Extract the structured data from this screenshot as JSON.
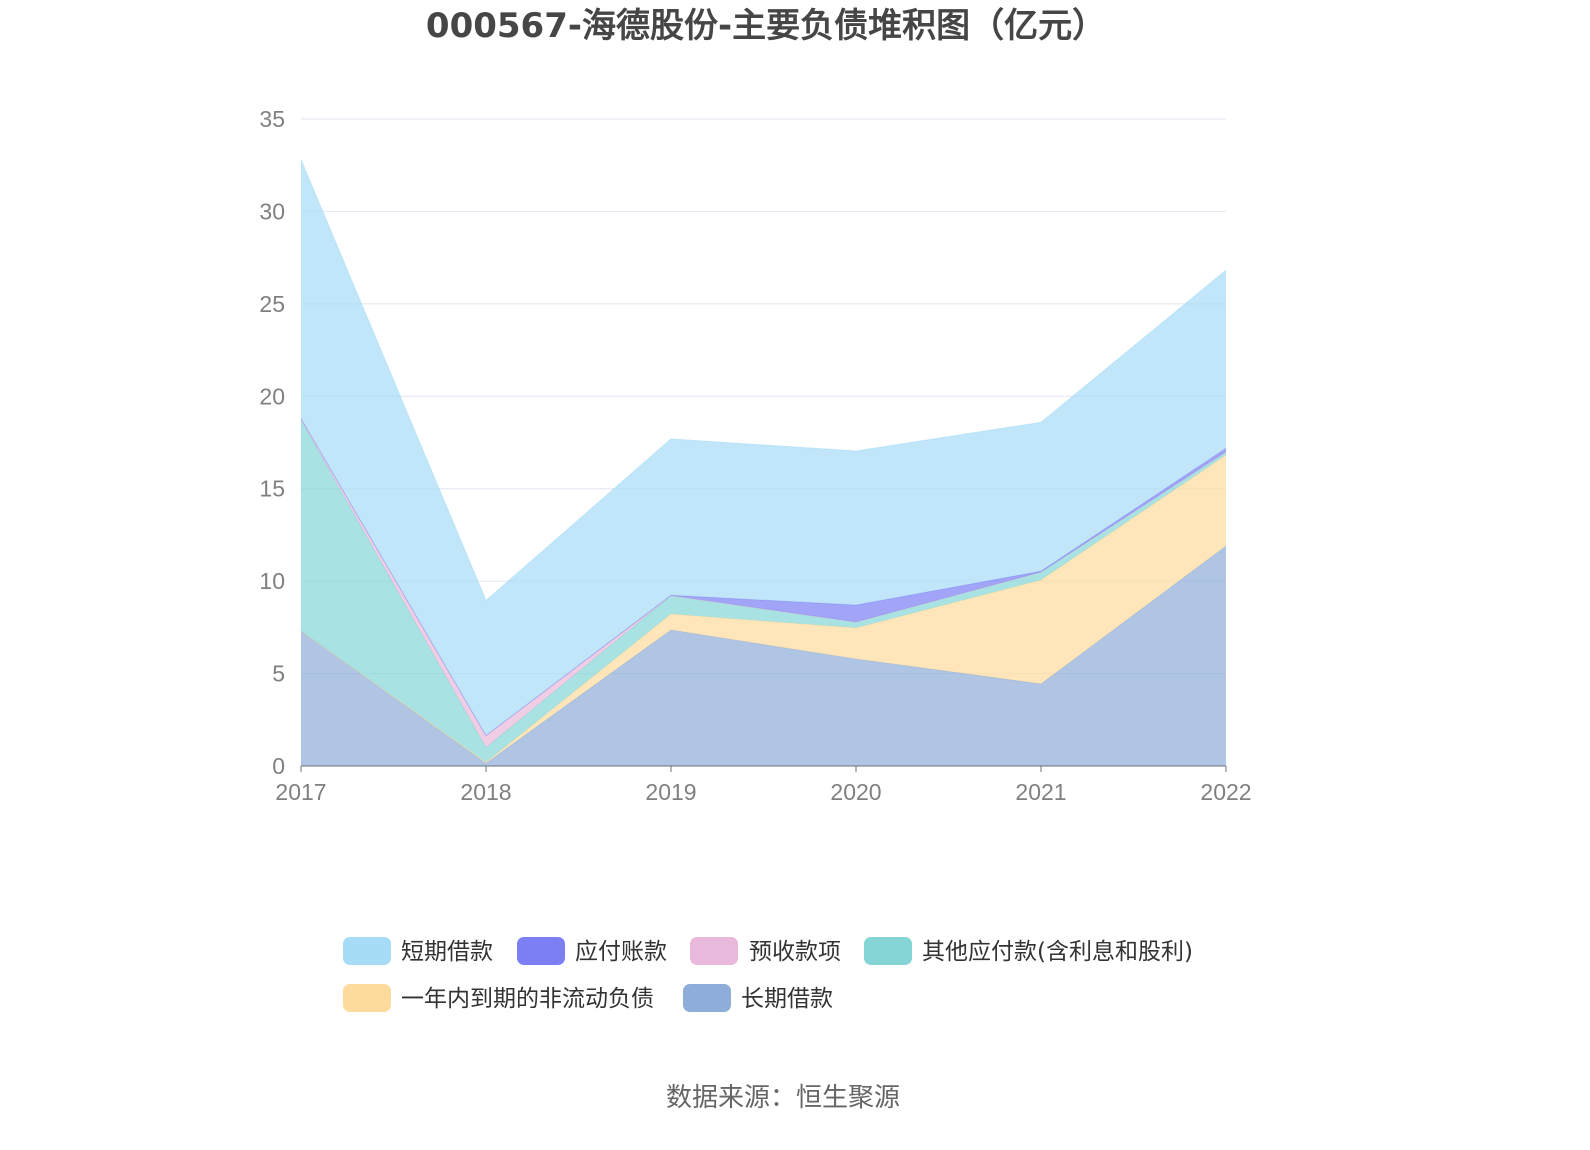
{
  "source": "数据来源：恒生聚源",
  "chart_data": {
    "type": "area",
    "stacked": true,
    "title": "000567-海德股份-主要负债堆积图（亿元）",
    "x": [
      "2017",
      "2018",
      "2019",
      "2020",
      "2021",
      "2022"
    ],
    "ylim": [
      0,
      35
    ],
    "yticks": [
      0,
      5,
      10,
      15,
      20,
      25,
      30,
      35
    ],
    "grid": true,
    "legend_position": "bottom",
    "series": [
      {
        "name": "短期借款",
        "color": "#a6dcf6",
        "values": [
          14.0,
          7.3,
          8.45,
          8.33,
          8.05,
          9.63
        ]
      },
      {
        "name": "应付账款",
        "color": "#7b7ff3",
        "values": [
          0,
          0,
          0.02,
          0.92,
          0.05,
          0.2
        ]
      },
      {
        "name": "预收款项",
        "color": "#e8b9da",
        "values": [
          0.1,
          0.65,
          0.02,
          0,
          0,
          0
        ]
      },
      {
        "name": "其他应付款(含利息和股利)",
        "color": "#85d5d6",
        "values": [
          11.4,
          0.8,
          0.98,
          0.32,
          0.43,
          0.17
        ]
      },
      {
        "name": "一年内到期的非流动负债",
        "color": "#fddb9d",
        "values": [
          0,
          0.05,
          0.86,
          1.68,
          5.62,
          4.92
        ]
      },
      {
        "name": "长期借款",
        "color": "#8fadd9",
        "values": [
          7.3,
          0.15,
          7.36,
          5.79,
          4.44,
          11.9
        ]
      }
    ]
  }
}
